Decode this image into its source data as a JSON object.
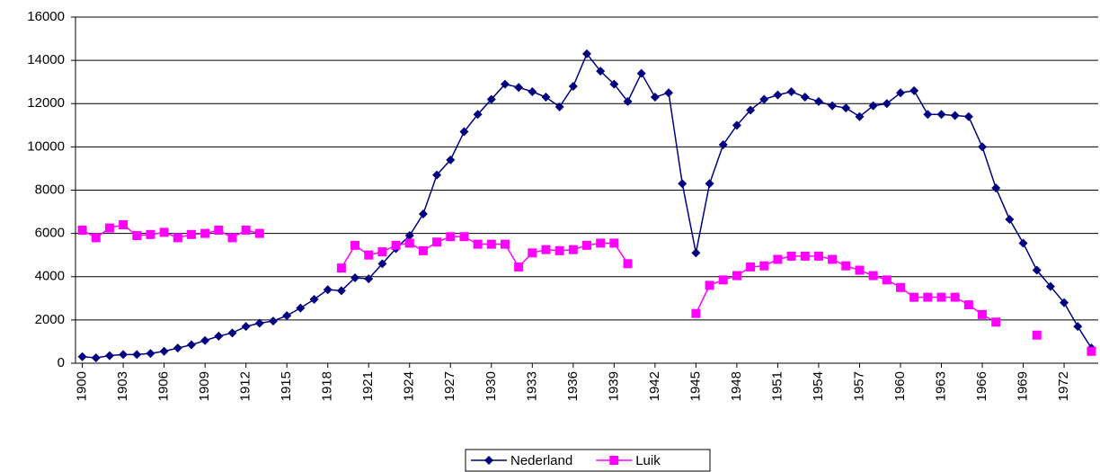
{
  "chart_data": {
    "type": "line",
    "x": [
      1900,
      1901,
      1902,
      1903,
      1904,
      1905,
      1906,
      1907,
      1908,
      1909,
      1910,
      1911,
      1912,
      1913,
      1914,
      1915,
      1916,
      1917,
      1918,
      1919,
      1920,
      1921,
      1922,
      1923,
      1924,
      1925,
      1926,
      1927,
      1928,
      1929,
      1930,
      1931,
      1932,
      1933,
      1934,
      1935,
      1936,
      1937,
      1938,
      1939,
      1940,
      1941,
      1942,
      1943,
      1944,
      1945,
      1946,
      1947,
      1948,
      1949,
      1950,
      1951,
      1952,
      1953,
      1954,
      1955,
      1956,
      1957,
      1958,
      1959,
      1960,
      1961,
      1962,
      1963,
      1964,
      1965,
      1966,
      1967,
      1968,
      1969,
      1970,
      1971,
      1972,
      1973,
      1974
    ],
    "series": [
      {
        "name": "Nederland",
        "color": "#000080",
        "marker": "diamond",
        "values": [
          300,
          250,
          350,
          400,
          400,
          450,
          550,
          700,
          850,
          1050,
          1250,
          1400,
          1700,
          1850,
          1950,
          2200,
          2550,
          2950,
          3400,
          3350,
          3950,
          3900,
          4600,
          5300,
          5900,
          6900,
          8700,
          9400,
          10700,
          11500,
          12200,
          12900,
          12750,
          12550,
          12300,
          11850,
          12800,
          14300,
          13500,
          12900,
          12100,
          13400,
          12300,
          12500,
          8300,
          5100,
          8300,
          10100,
          11000,
          11700,
          12200,
          12400,
          12550,
          12300,
          12100,
          11900,
          11800,
          11400,
          11900,
          12000,
          12500,
          12600,
          11500,
          11500,
          11450,
          11400,
          10000,
          8100,
          6650,
          5550,
          4300,
          3550,
          2800,
          1700,
          700
        ]
      },
      {
        "name": "Luik",
        "color": "#ff00ff",
        "marker": "square",
        "values": [
          6150,
          5800,
          6250,
          6400,
          5900,
          5950,
          6050,
          5800,
          5950,
          6000,
          6150,
          5800,
          6150,
          6000,
          null,
          null,
          null,
          null,
          null,
          4400,
          5450,
          5000,
          5150,
          5450,
          5550,
          5200,
          5600,
          5850,
          5850,
          5500,
          5500,
          5500,
          4450,
          5100,
          5250,
          5200,
          5250,
          5450,
          5550,
          5550,
          4600,
          null,
          null,
          null,
          null,
          2300,
          3600,
          3850,
          4050,
          4450,
          4500,
          4800,
          4950,
          4950,
          4950,
          4800,
          4500,
          4300,
          4050,
          3850,
          3500,
          3050,
          3050,
          3050,
          3050,
          2700,
          2250,
          1900,
          null,
          null,
          1300,
          null,
          null,
          null,
          550
        ]
      }
    ],
    "xlim": [
      1899.5,
      1974.5
    ],
    "xticks": [
      1900,
      1903,
      1906,
      1909,
      1912,
      1915,
      1918,
      1921,
      1924,
      1927,
      1930,
      1933,
      1936,
      1939,
      1942,
      1945,
      1948,
      1951,
      1954,
      1957,
      1960,
      1963,
      1966,
      1969,
      1972
    ],
    "ylim": [
      0,
      16000
    ],
    "yticks": [
      0,
      2000,
      4000,
      6000,
      8000,
      10000,
      12000,
      14000,
      16000
    ],
    "grid": true,
    "legend": "bottom"
  }
}
